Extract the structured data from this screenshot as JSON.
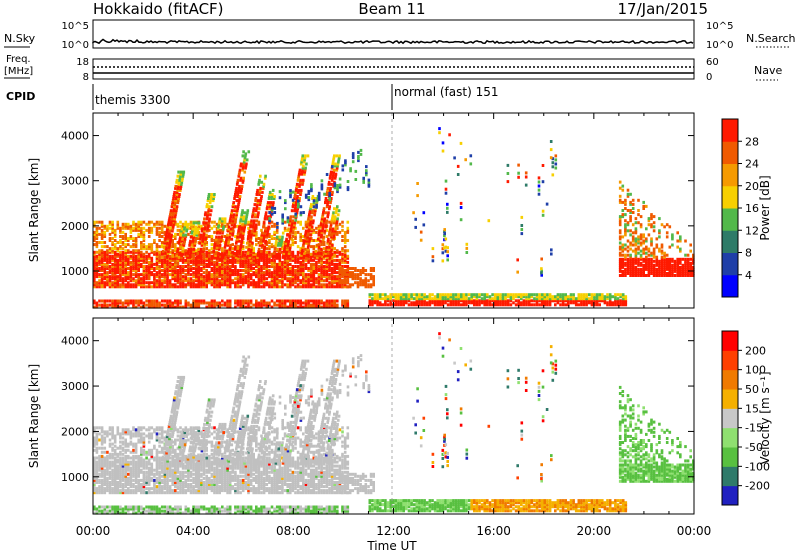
{
  "header": {
    "station": "Hokkaido (fitACF)",
    "beam": "Beam 11",
    "date": "17/Jan/2015"
  },
  "strips": {
    "nsky_label": "N.Sky",
    "nsky_ticks": [
      "10^5",
      "10^0"
    ],
    "nsearch_label": "N.Search",
    "freq_label_top": "Freq.",
    "freq_label_unit": "[MHz]",
    "freq_ticks": [
      "18",
      "8"
    ],
    "nave_label": "Nave",
    "nave_ticks": [
      "60",
      "0"
    ],
    "cpid_label": "CPID",
    "cpid_segments": [
      {
        "name": "themis 3300",
        "start_hour": 0,
        "end_hour": 12
      },
      {
        "name": "normal (fast) 151",
        "start_hour": 12,
        "end_hour": 24
      }
    ]
  },
  "axes": {
    "xlabel": "Time UT",
    "x_ticks": [
      "00:00",
      "04:00",
      "08:00",
      "12:00",
      "16:00",
      "20:00",
      "00:00"
    ],
    "ylabel": "Slant Range [km]",
    "y_ticks": [
      "1000",
      "2000",
      "3000",
      "4000"
    ]
  },
  "chart_data": [
    {
      "type": "heatmap",
      "variable": "Power",
      "colorbar_label": "Power [dB]",
      "xlim_hours": [
        0,
        24
      ],
      "ylim_km": [
        180,
        4500
      ],
      "colorbar_ticks": [
        "28",
        "24",
        "20",
        "16",
        "12",
        "8",
        "4"
      ],
      "color_scale": [
        "#0000ff",
        "#1f3fa8",
        "#2e7b68",
        "#52b84a",
        "#f7d000",
        "#f59a00",
        "#f05a00",
        "#ff1a00"
      ],
      "color_bins_dB": [
        0,
        4,
        8,
        12,
        16,
        20,
        24,
        28,
        32
      ]
    },
    {
      "type": "heatmap",
      "variable": "Velocity",
      "colorbar_label": "Velocity [m s⁻¹]",
      "xlim_hours": [
        0,
        24
      ],
      "ylim_km": [
        180,
        4500
      ],
      "colorbar_ticks": [
        "200",
        "100",
        "50",
        "15",
        "-15",
        "-50",
        "-100",
        "-200"
      ],
      "color_scale": [
        "#2020c0",
        "#2f7a6a",
        "#58c040",
        "#8fe070",
        "#c8c8c8",
        "#f5b000",
        "#f07a00",
        "#ff4000",
        "#ff0000"
      ],
      "ground_scatter_color": "#c0c0c0"
    }
  ]
}
